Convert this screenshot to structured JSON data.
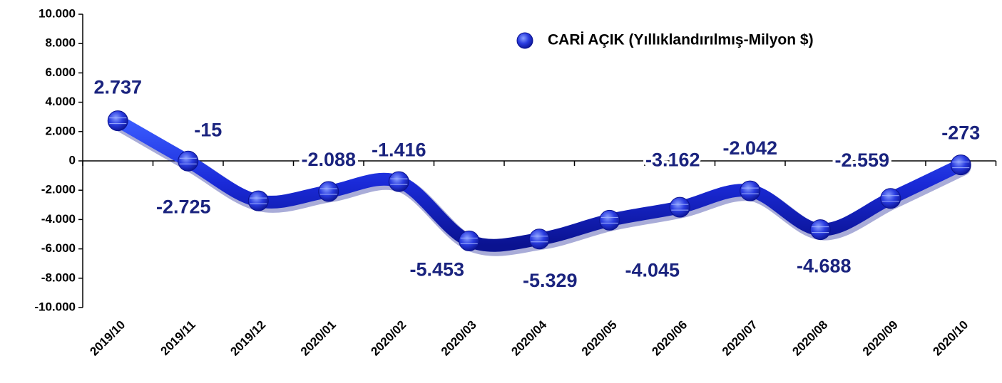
{
  "chart_data": {
    "type": "line",
    "categories": [
      "2019/10",
      "2019/11",
      "2019/12",
      "2020/01",
      "2020/02",
      "2020/03",
      "2020/04",
      "2020/05",
      "2020/06",
      "2020/07",
      "2020/08",
      "2020/09",
      "2020/10"
    ],
    "series": [
      {
        "name": "CARİ AÇIK (Yıllıklandırılmış-Milyon $)",
        "color": "#1a2ad8",
        "values": [
          2737,
          -15,
          -2725,
          -2088,
          -1416,
          -5453,
          -5329,
          -4045,
          -3162,
          -2042,
          -4688,
          -2559,
          -273
        ],
        "value_labels": [
          "2.737",
          "-15",
          "-2.725",
          "-2.088",
          "-1.416",
          "-5.453",
          "-5.329",
          "-4.045",
          "-3.162",
          "-2.042",
          "-4.688",
          "-2.559",
          "-273"
        ]
      }
    ],
    "ylim": [
      -10000,
      10000
    ],
    "yticks": [
      {
        "value": -10000,
        "label": "-10.000"
      },
      {
        "value": -8000,
        "label": "-8.000"
      },
      {
        "value": -6000,
        "label": "-6.000"
      },
      {
        "value": -4000,
        "label": "-4.000"
      },
      {
        "value": -2000,
        "label": "-2.000"
      },
      0,
      {
        "value": 2000,
        "label": "2.000"
      },
      {
        "value": 4000,
        "label": "4.000"
      },
      {
        "value": 6000,
        "label": "6.000"
      },
      {
        "value": 8000,
        "label": "8.000"
      },
      {
        "value": 10000,
        "label": "10.000"
      }
    ],
    "legend": "top-right"
  }
}
